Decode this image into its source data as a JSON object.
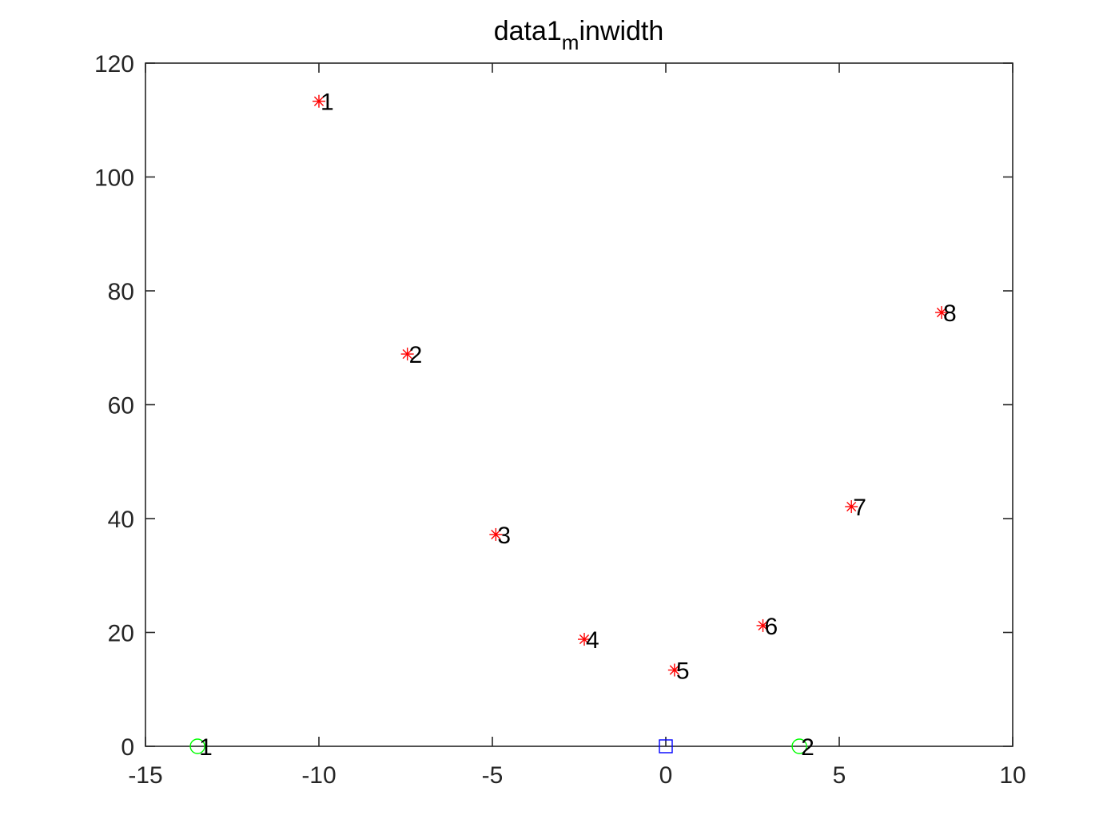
{
  "chart_data": {
    "type": "scatter",
    "title": "data1",
    "title_subscript": "m",
    "title_tail": "inwidth",
    "xlabel": "",
    "ylabel": "",
    "xlim": [
      -15,
      10
    ],
    "ylim": [
      0,
      120
    ],
    "xticks": [
      -15,
      -10,
      -5,
      0,
      5,
      10
    ],
    "yticks": [
      0,
      20,
      40,
      60,
      80,
      100,
      120
    ],
    "xtick_labels": [
      "-15",
      "-10",
      "-5",
      "0",
      "5",
      "10"
    ],
    "ytick_labels": [
      "0",
      "20",
      "40",
      "60",
      "80",
      "100",
      "120"
    ],
    "grid": false,
    "series": [
      {
        "marker": "asterisk",
        "color": "#ff0000",
        "points": [
          {
            "x": -10.0,
            "y": 113.3,
            "label": "1"
          },
          {
            "x": -7.45,
            "y": 68.9,
            "label": "2"
          },
          {
            "x": -4.9,
            "y": 37.2,
            "label": "3"
          },
          {
            "x": -2.35,
            "y": 18.8,
            "label": "4"
          },
          {
            "x": 0.25,
            "y": 13.4,
            "label": "5"
          },
          {
            "x": 2.8,
            "y": 21.2,
            "label": "6"
          },
          {
            "x": 5.35,
            "y": 42.1,
            "label": "7"
          },
          {
            "x": 7.95,
            "y": 76.2,
            "label": "8"
          }
        ]
      },
      {
        "marker": "circle",
        "color": "#00ff00",
        "points": [
          {
            "x": -13.5,
            "y": 0,
            "label": "1"
          },
          {
            "x": 3.85,
            "y": 0,
            "label": "2"
          }
        ]
      },
      {
        "marker": "square",
        "color": "#0000ff",
        "points": [
          {
            "x": 0,
            "y": 0,
            "label": ""
          }
        ]
      }
    ],
    "axis_color": "#262626"
  }
}
